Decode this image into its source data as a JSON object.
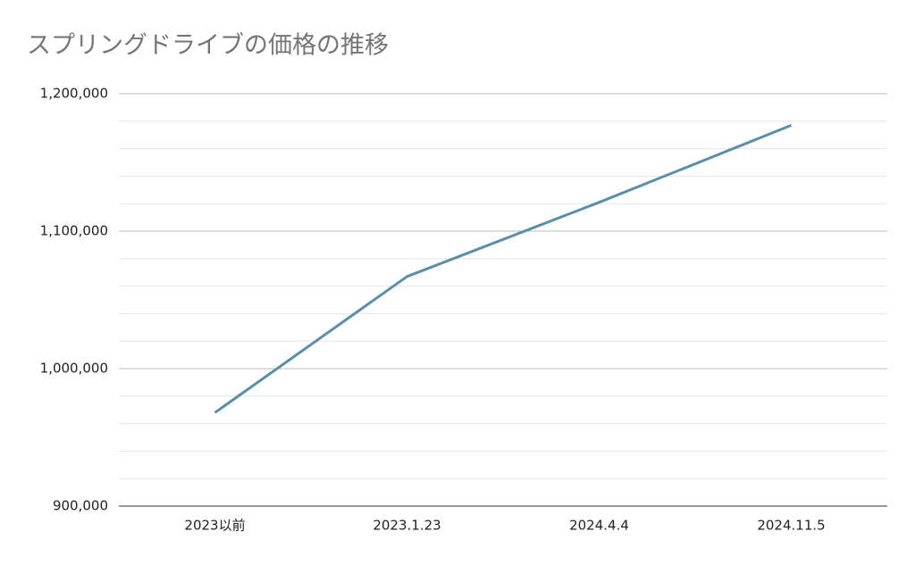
{
  "chart_data": {
    "type": "line",
    "title": "スプリングドライブの価格の推移",
    "categories": [
      "2023以前",
      "2023.1.23",
      "2024.4.4",
      "2024.11.5"
    ],
    "series": [
      {
        "name": "価格",
        "color": "#5b8fa8",
        "values": [
          968000,
          1067000,
          1121000,
          1177000
        ]
      }
    ],
    "ylim": [
      900000,
      1200000
    ],
    "yticks": [
      {
        "value": 900000,
        "label": "900,000"
      },
      {
        "value": 1000000,
        "label": "1,000,000"
      },
      {
        "value": 1100000,
        "label": "1,100,000"
      },
      {
        "value": 1200000,
        "label": "1,200,000"
      }
    ],
    "minor_yticks": [
      920000,
      940000,
      960000,
      980000,
      1020000,
      1040000,
      1060000,
      1080000,
      1120000,
      1140000,
      1160000,
      1180000
    ],
    "grid": true
  }
}
